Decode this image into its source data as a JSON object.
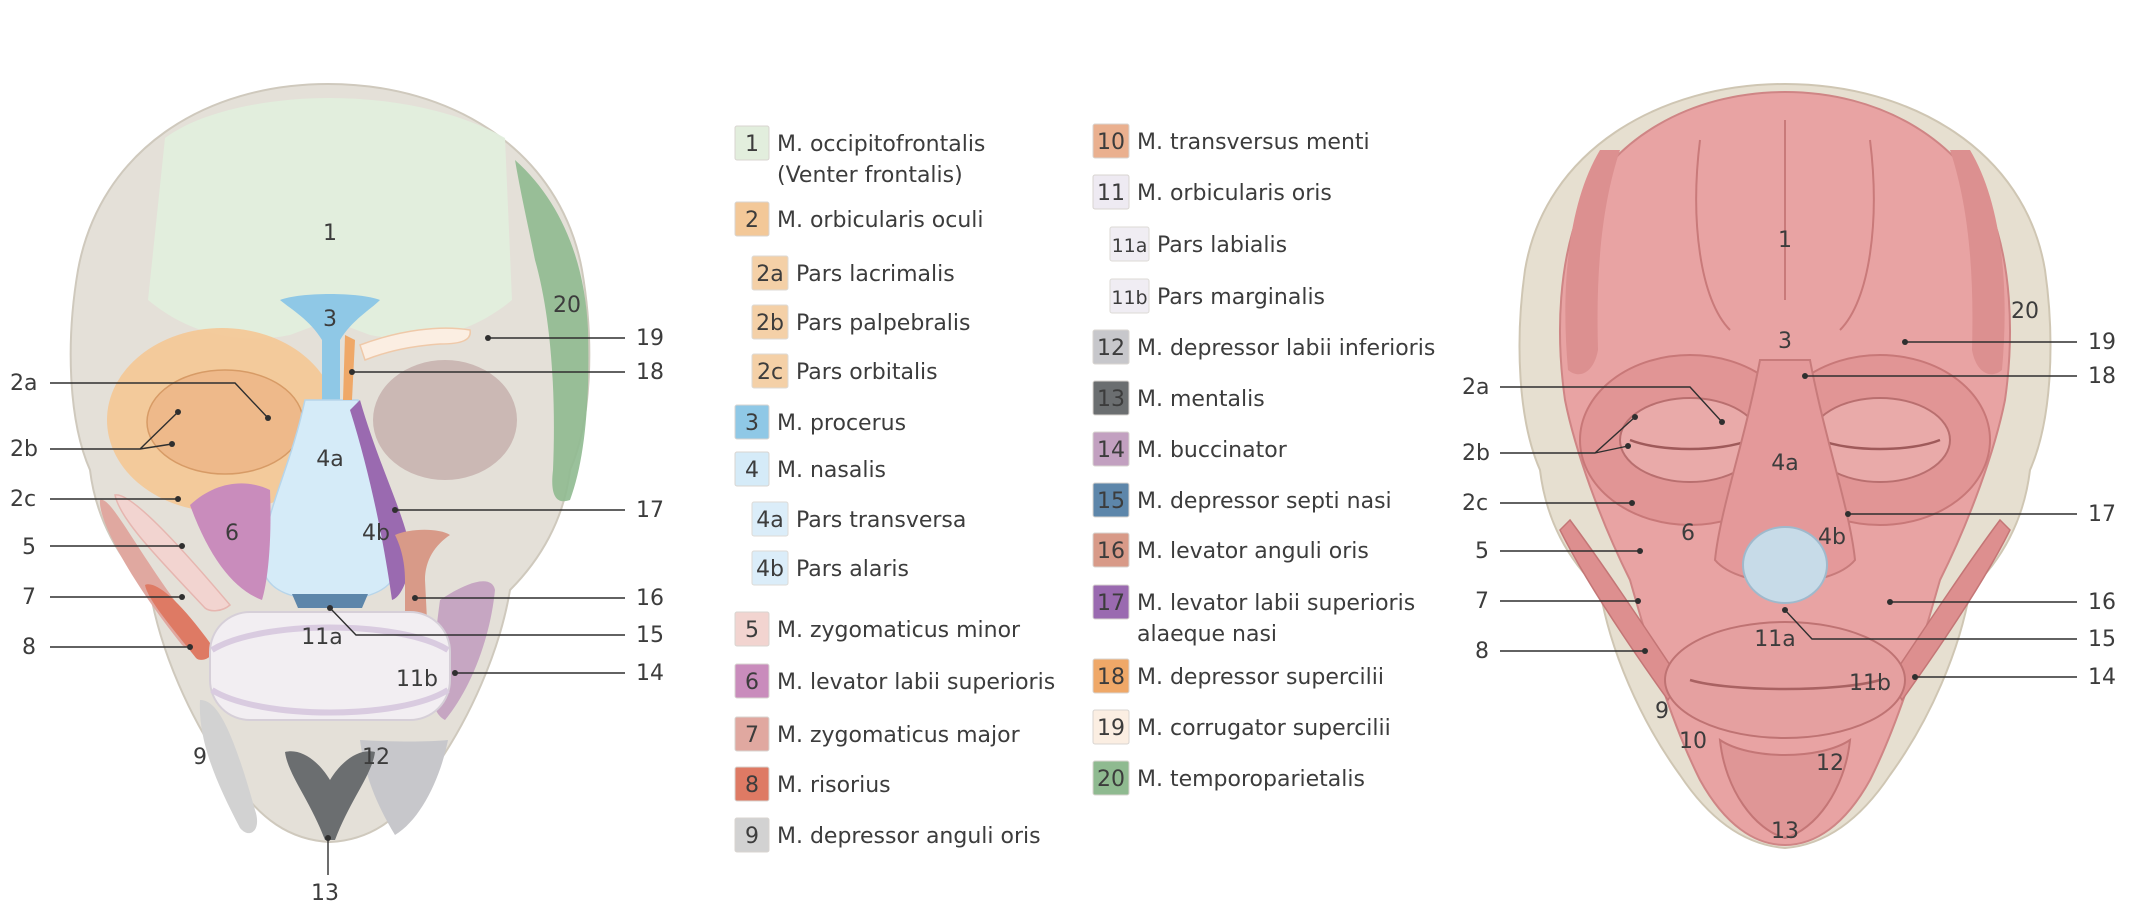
{
  "palette": {
    "1": "#e2eedd",
    "2": "#f3c898",
    "3": "#8fc8e6",
    "4": "#d5ebf8",
    "5": "#f2d4d0",
    "6": "#c98cbc",
    "7": "#e0a8a0",
    "8": "#de7a64",
    "9": "#d2d2d2",
    "10": "#eab08f",
    "11": "#eeeaf2",
    "12": "#c7c7cb",
    "13": "#6b6e70",
    "14": "#c2a0c0",
    "15": "#5d86aa",
    "16": "#d89a88",
    "17": "#9a6ab0",
    "18": "#efa868",
    "19": "#fbeee2",
    "20": "#8fba90",
    "bone": "#e3dfd6",
    "muscle": "#e8a3a3",
    "muscleDark": "#d88c8c"
  },
  "left_diagram": {
    "labels": {
      "l1": "1",
      "l3": "3",
      "l20": "20",
      "l4a": "4a",
      "l4b": "4b",
      "l6": "6",
      "l11a": "11a",
      "l11b": "11b",
      "l9": "9",
      "l12": "12",
      "l13": "13",
      "c2a": "2a",
      "c2b": "2b",
      "c2c": "2c",
      "c5": "5",
      "c7": "7",
      "c8": "8",
      "c19": "19",
      "c18": "18",
      "c17": "17",
      "c16": "16",
      "c15": "15",
      "c14": "14"
    }
  },
  "legend": {
    "col1": [
      {
        "badge": "1",
        "key": "1",
        "text": "M. occipitofrontalis",
        "text2": "(Venter frontalis)"
      },
      {
        "badge": "2",
        "key": "2",
        "text": "M. orbicularis oculi"
      },
      {
        "badge": "2a",
        "key": "2",
        "text": "Pars lacrimalis",
        "sub": true
      },
      {
        "badge": "2b",
        "key": "2",
        "text": "Pars palpebralis",
        "sub": true
      },
      {
        "badge": "2c",
        "key": "2",
        "text": "Pars orbitalis",
        "sub": true
      },
      {
        "badge": "3",
        "key": "3",
        "text": "M. procerus"
      },
      {
        "badge": "4",
        "key": "4",
        "text": "M. nasalis"
      },
      {
        "badge": "4a",
        "key": "4",
        "text": "Pars transversa",
        "sub": true
      },
      {
        "badge": "4b",
        "key": "4",
        "text": "Pars alaris",
        "sub": true
      },
      {
        "badge": "5",
        "key": "5",
        "text": "M. zygomaticus minor"
      },
      {
        "badge": "6",
        "key": "6",
        "text": "M. levator labii superioris"
      },
      {
        "badge": "7",
        "key": "7",
        "text": "M. zygomaticus major"
      },
      {
        "badge": "8",
        "key": "8",
        "text": "M. risorius"
      },
      {
        "badge": "9",
        "key": "9",
        "text": "M. depressor anguli oris"
      }
    ],
    "col2": [
      {
        "badge": "10",
        "key": "10",
        "text": "M. transversus menti"
      },
      {
        "badge": "11",
        "key": "11",
        "text": "M. orbicularis oris"
      },
      {
        "badge": "11a",
        "key": "11",
        "text": "Pars labialis",
        "sub": true
      },
      {
        "badge": "11b",
        "key": "11",
        "text": "Pars marginalis",
        "sub": true
      },
      {
        "badge": "12",
        "key": "12",
        "text": "M. depressor labii inferioris"
      },
      {
        "badge": "13",
        "key": "13",
        "text": "M. mentalis"
      },
      {
        "badge": "14",
        "key": "14",
        "text": "M. buccinator"
      },
      {
        "badge": "15",
        "key": "15",
        "text": "M. depressor septi nasi"
      },
      {
        "badge": "16",
        "key": "16",
        "text": "M. levator anguli oris"
      },
      {
        "badge": "17",
        "key": "17",
        "text": "M. levator labii superioris",
        "text2": "alaeque nasi"
      },
      {
        "badge": "18",
        "key": "18",
        "text": "M. depressor supercilii"
      },
      {
        "badge": "19",
        "key": "19",
        "text": "M. corrugator supercilii"
      },
      {
        "badge": "20",
        "key": "20",
        "text": "M. temporoparietalis"
      }
    ]
  },
  "right_diagram": {
    "labels": {
      "l1": "1",
      "l3": "3",
      "l20": "20",
      "l4a": "4a",
      "l4b": "4b",
      "l6": "6",
      "l11a": "11a",
      "l11b": "11b",
      "l9": "9",
      "l10": "10",
      "l12": "12",
      "l13": "13",
      "c2a": "2a",
      "c2b": "2b",
      "c2c": "2c",
      "c5": "5",
      "c7": "7",
      "c8": "8",
      "c19": "19",
      "c18": "18",
      "c17": "17",
      "c16": "16",
      "c15": "15",
      "c14": "14"
    }
  }
}
